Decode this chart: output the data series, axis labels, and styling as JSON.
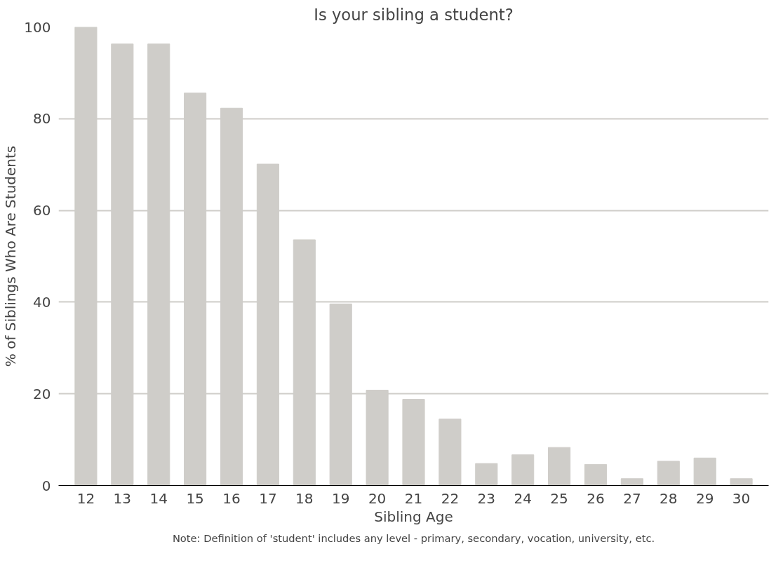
{
  "chart_data": {
    "type": "bar",
    "title": "Is your sibling a student?",
    "xlabel": "Sibling Age",
    "ylabel": "% of Siblings Who Are Students",
    "categories": [
      "12",
      "13",
      "14",
      "15",
      "16",
      "17",
      "18",
      "19",
      "20",
      "21",
      "22",
      "23",
      "24",
      "25",
      "26",
      "27",
      "28",
      "29",
      "30"
    ],
    "values": [
      100,
      96.3,
      96.3,
      85.6,
      82.3,
      70.1,
      53.6,
      39.6,
      20.8,
      18.8,
      14.5,
      4.8,
      6.7,
      8.3,
      4.6,
      1.5,
      5.3,
      6.0,
      1.5
    ],
    "color": "#cfcdc9",
    "ylim": [
      0,
      100
    ],
    "yticks": [
      0,
      20,
      40,
      60,
      80,
      100
    ],
    "grid": "y",
    "annotations": [
      "Note: Definition of 'student' includes any level - primary, secondary, vocation, university, etc."
    ]
  }
}
